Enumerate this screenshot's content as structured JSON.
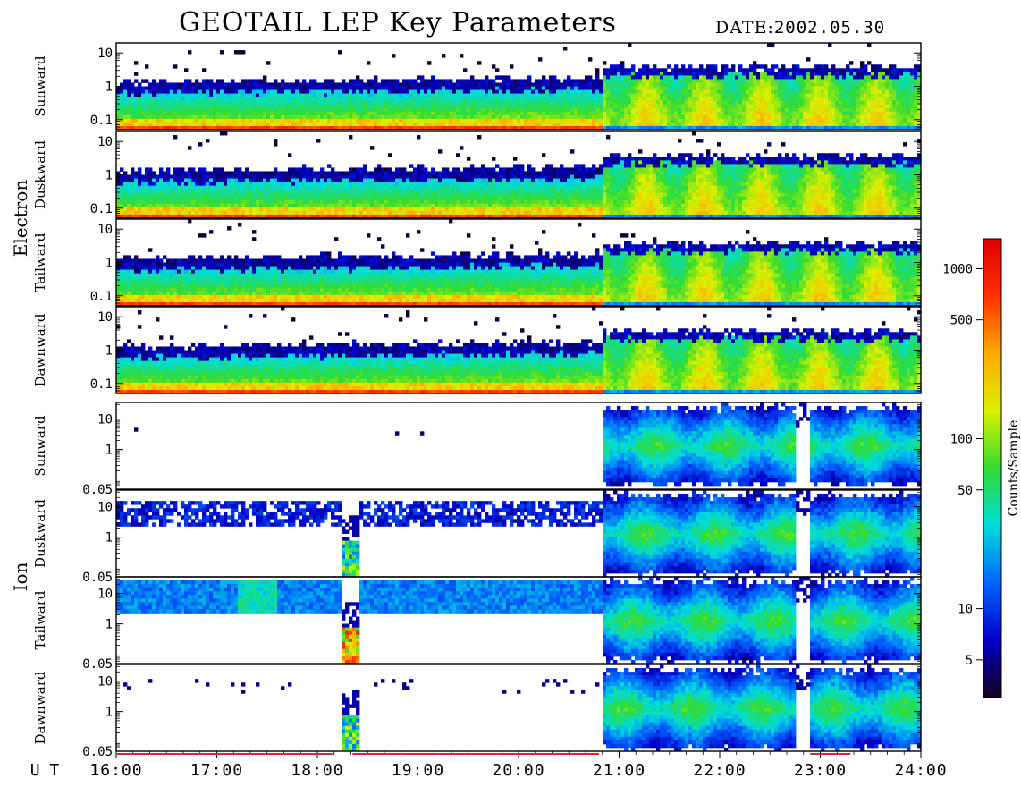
{
  "header": {
    "title": "GEOTAIL LEP Key Parameters",
    "date_label": "DATE:",
    "date_value": "2002.05.30"
  },
  "chart_data": {
    "type": "heatmap",
    "title": "GEOTAIL LEP Key Parameters",
    "date": "2002.05.30",
    "x_axis": {
      "label": "U T",
      "ticks": [
        "16:00",
        "17:00",
        "18:00",
        "19:00",
        "20:00",
        "21:00",
        "22:00",
        "23:00",
        "24:00"
      ],
      "range_hours": [
        16,
        24
      ]
    },
    "groups": [
      {
        "name": "Electron",
        "panels": [
          "Sunward",
          "Duskward",
          "Tailward",
          "Dawnward"
        ]
      },
      {
        "name": "Ion",
        "panels": [
          "Sunward",
          "Duskward",
          "Tailward",
          "Dawnward"
        ]
      }
    ],
    "panels": [
      {
        "group": "Electron",
        "label": "Sunward",
        "y_ticks": [
          "10",
          "1",
          "0.1"
        ],
        "log_range": [
          0.05,
          20
        ],
        "scale": "log"
      },
      {
        "group": "Electron",
        "label": "Duskward",
        "y_ticks": [
          "10",
          "1",
          "0.1"
        ],
        "log_range": [
          0.05,
          20
        ],
        "scale": "log"
      },
      {
        "group": "Electron",
        "label": "Tailward",
        "y_ticks": [
          "10",
          "1",
          "0.1"
        ],
        "log_range": [
          0.05,
          20
        ],
        "scale": "log"
      },
      {
        "group": "Electron",
        "label": "Dawnward",
        "y_ticks": [
          "10",
          "1",
          "0.1"
        ],
        "log_range": [
          0.05,
          20
        ],
        "scale": "log"
      },
      {
        "group": "Ion",
        "label": "Sunward",
        "y_ticks": [
          "10",
          "1",
          "0.05"
        ],
        "log_range": [
          0.05,
          35
        ],
        "scale": "log"
      },
      {
        "group": "Ion",
        "label": "Duskward",
        "y_ticks": [
          "10",
          "1",
          "0.05"
        ],
        "log_range": [
          0.05,
          35
        ],
        "scale": "log"
      },
      {
        "group": "Ion",
        "label": "Tailward",
        "y_ticks": [
          "10",
          "1",
          "0.05"
        ],
        "log_range": [
          0.05,
          35
        ],
        "scale": "log"
      },
      {
        "group": "Ion",
        "label": "Dawnward",
        "y_ticks": [
          "10",
          "1",
          "0.05"
        ],
        "log_range": [
          0.05,
          35
        ],
        "scale": "log"
      }
    ],
    "colorbar": {
      "label": "Counts/Sample",
      "scale": "log",
      "range": [
        3,
        1500
      ],
      "ticks": [
        "1000",
        "500",
        "100",
        "50",
        "10",
        "5"
      ],
      "tick_values": [
        1000,
        500,
        100,
        50,
        10,
        5
      ],
      "colors": [
        "#14001e",
        "#0000c8",
        "#0064ff",
        "#00dcdc",
        "#32dc32",
        "#dcf000",
        "#ffaa00",
        "#ff3200",
        "#dc0000"
      ]
    },
    "regimes": {
      "quiet_end_hour": 20.85,
      "ion_burst_hours": [
        18.25,
        18.42
      ],
      "ion_gap_hours": [
        22.75,
        22.9
      ]
    },
    "data_coverage_marks": [
      [
        16,
        18.15
      ],
      [
        18.35,
        20.8
      ],
      [
        22.9,
        23.3
      ]
    ]
  }
}
